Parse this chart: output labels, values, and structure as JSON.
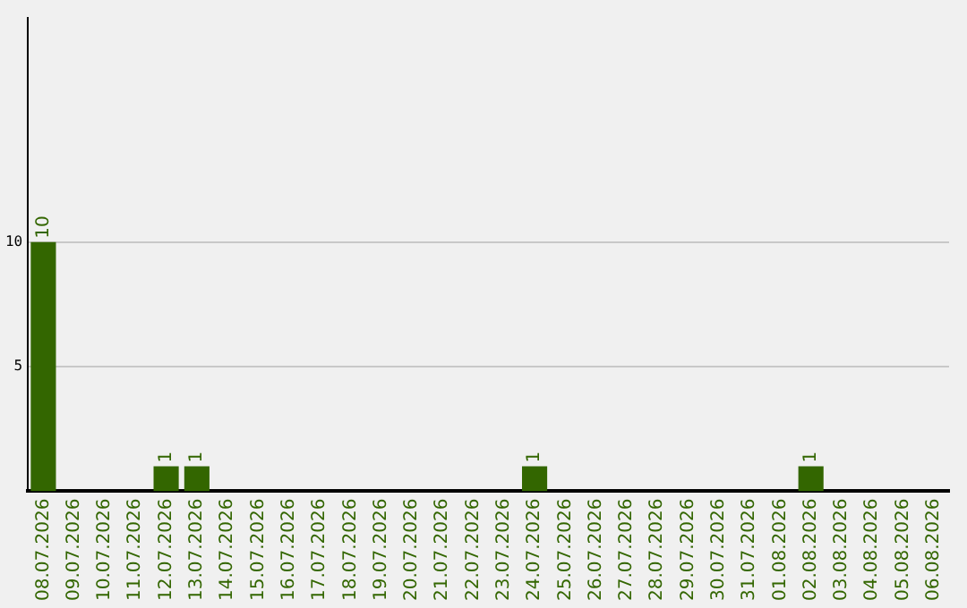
{
  "chart_data": {
    "type": "bar",
    "categories": [
      "08.07.2026",
      "09.07.2026",
      "10.07.2026",
      "11.07.2026",
      "12.07.2026",
      "13.07.2026",
      "14.07.2026",
      "15.07.2026",
      "16.07.2026",
      "17.07.2026",
      "18.07.2026",
      "19.07.2026",
      "20.07.2026",
      "21.07.2026",
      "22.07.2026",
      "23.07.2026",
      "24.07.2026",
      "25.07.2026",
      "26.07.2026",
      "27.07.2026",
      "28.07.2026",
      "29.07.2026",
      "30.07.2026",
      "31.07.2026",
      "01.08.2026",
      "02.08.2026",
      "03.08.2026",
      "04.08.2026",
      "05.08.2026",
      "06.08.2026"
    ],
    "values": [
      10,
      0,
      0,
      0,
      1,
      1,
      0,
      0,
      0,
      0,
      0,
      0,
      0,
      0,
      0,
      0,
      1,
      0,
      0,
      0,
      0,
      0,
      0,
      0,
      0,
      1,
      0,
      0,
      0,
      0
    ],
    "color": "#336600",
    "value_labels": [
      "10",
      null,
      null,
      null,
      "1",
      "1",
      null,
      null,
      null,
      null,
      null,
      null,
      null,
      null,
      null,
      null,
      "1",
      null,
      null,
      null,
      null,
      null,
      null,
      null,
      null,
      "1",
      null,
      null,
      null,
      null
    ],
    "ylim": [
      0,
      19
    ],
    "yticks": [
      5,
      10
    ],
    "grid": "y",
    "legend": false
  }
}
